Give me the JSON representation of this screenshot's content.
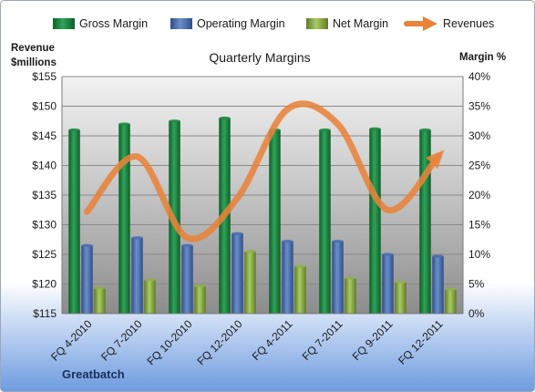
{
  "chart_data": {
    "type": "bar",
    "title": "Quarterly Margins",
    "company": "Greatbatch",
    "categories": [
      "FQ 4-2010",
      "FQ 7-2010",
      "FQ 10-2010",
      "FQ 12-2010",
      "FQ 4-2011",
      "FQ 7-2011",
      "FQ 9-2011",
      "FQ 12-2011"
    ],
    "left_axis": {
      "label_line1": "Revenue",
      "label_line2": "$millions",
      "min": 115,
      "max": 155,
      "step": 5,
      "tick_prefix": "$"
    },
    "right_axis": {
      "label": "Margin %",
      "min": 0,
      "max": 40,
      "step": 5,
      "tick_suffix": "%"
    },
    "bar_series": [
      {
        "name": "Gross Margin",
        "color": "#1f8a43",
        "values": [
          31.0,
          32.0,
          32.5,
          33.0,
          31.0,
          31.0,
          31.2,
          31.0
        ]
      },
      {
        "name": "Operating Margin",
        "color": "#4a6fb0",
        "values": [
          11.5,
          12.8,
          11.5,
          13.5,
          12.2,
          12.2,
          10.0,
          9.7
        ]
      },
      {
        "name": "Net Margin",
        "color": "#8fb04a",
        "values": [
          4.3,
          5.7,
          4.7,
          10.5,
          8.0,
          6.0,
          5.3,
          4.1
        ]
      }
    ],
    "line_series": {
      "name": "Revenues",
      "color": "#e8833a",
      "axis": "left",
      "values": [
        132.2,
        141.5,
        127.8,
        134.5,
        149.5,
        147.0,
        132.5,
        141.5
      ]
    },
    "grid": true,
    "legend_position": "top"
  }
}
